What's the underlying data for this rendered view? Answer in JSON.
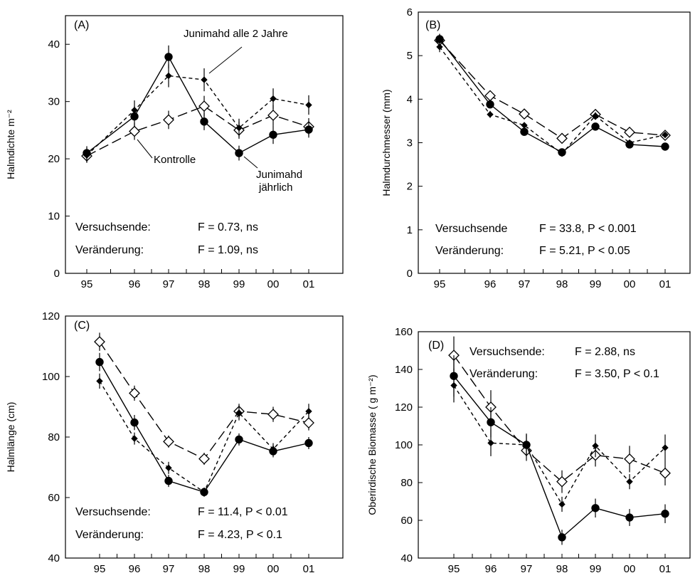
{
  "chart_data": [
    {
      "panel": "(A)",
      "type": "line",
      "categories": [
        "95",
        "96",
        "97",
        "98",
        "99",
        "00",
        "01"
      ],
      "ylabel": "Halmdichte m⁻²",
      "xlabel": "",
      "ylim": [
        0,
        45
      ],
      "yticks": [
        0,
        10,
        20,
        30,
        40
      ],
      "series": [
        {
          "name": "Kontrolle",
          "marker": "open-diamond",
          "dash": "long-dash",
          "values": [
            20.5,
            24.8,
            26.8,
            29.2,
            25.0,
            27.6,
            25.6
          ],
          "err": [
            1.2,
            1.5,
            1.6,
            1.8,
            1.5,
            1.8,
            1.5
          ]
        },
        {
          "name": "Junimahd alle 2 Jahre",
          "marker": "small-diamond",
          "dash": "short-dash",
          "values": [
            20.6,
            28.5,
            34.5,
            33.8,
            25.4,
            30.5,
            29.4
          ],
          "err": [
            1.2,
            1.7,
            2.0,
            2.0,
            1.6,
            1.8,
            1.7
          ]
        },
        {
          "name": "Junimahd\njährlich",
          "marker": "filled-circle",
          "dash": "solid",
          "values": [
            21.0,
            27.4,
            37.8,
            26.5,
            21.0,
            24.2,
            25.1
          ],
          "err": [
            1.2,
            1.8,
            2.0,
            1.5,
            1.3,
            1.6,
            1.4
          ]
        }
      ],
      "annotations": [
        {
          "label": "Versuchsende:",
          "stat": "F  = 0.73, ns"
        },
        {
          "label": "Veränderung:",
          "stat": "F  = 1.09, ns"
        }
      ]
    },
    {
      "panel": "(B)",
      "type": "line",
      "categories": [
        "95",
        "96",
        "97",
        "98",
        "99",
        "00",
        "01"
      ],
      "ylabel": "Halmdurchmesser (mm)",
      "xlabel": "",
      "ylim": [
        0,
        6
      ],
      "yticks": [
        0,
        1,
        2,
        3,
        4,
        5,
        6
      ],
      "series": [
        {
          "name": "",
          "marker": "open-diamond",
          "dash": "long-dash",
          "values": [
            5.35,
            4.08,
            3.66,
            3.1,
            3.65,
            3.24,
            3.17
          ],
          "err": [
            0.15,
            0.1,
            0.08,
            0.07,
            0.08,
            0.07,
            0.06
          ]
        },
        {
          "name": "",
          "marker": "small-diamond",
          "dash": "short-dash",
          "values": [
            5.2,
            3.65,
            3.4,
            2.75,
            3.62,
            3.0,
            3.18
          ],
          "err": [
            0.12,
            0.08,
            0.07,
            0.06,
            0.08,
            0.06,
            0.06
          ]
        },
        {
          "name": "",
          "marker": "filled-circle",
          "dash": "solid",
          "values": [
            5.38,
            3.88,
            3.25,
            2.78,
            3.37,
            2.96,
            2.91
          ],
          "err": [
            0.12,
            0.09,
            0.07,
            0.06,
            0.07,
            0.06,
            0.05
          ]
        }
      ],
      "annotations": [
        {
          "label": "Versuchsende",
          "stat": "F  = 33.8, P  < 0.001"
        },
        {
          "label": "Veränderung:",
          "stat": "F  = 5.21, P  < 0.05"
        }
      ]
    },
    {
      "panel": "(C)",
      "type": "line",
      "categories": [
        "95",
        "96",
        "97",
        "98",
        "99",
        "00",
        "01"
      ],
      "ylabel": "Halmlänge (cm)",
      "xlabel": "",
      "ylim": [
        40,
        120
      ],
      "yticks": [
        40,
        60,
        80,
        100,
        120
      ],
      "series": [
        {
          "name": "",
          "marker": "open-diamond",
          "dash": "long-dash",
          "values": [
            111.5,
            94.5,
            78.5,
            72.8,
            88.5,
            87.5,
            84.7
          ],
          "err": [
            3.0,
            2.5,
            2.0,
            2.0,
            2.5,
            2.5,
            2.5
          ]
        },
        {
          "name": "",
          "marker": "small-diamond",
          "dash": "short-dash",
          "values": [
            98.5,
            79.5,
            69.8,
            61.8,
            88.0,
            76.0,
            88.5
          ],
          "err": [
            2.5,
            2.0,
            2.0,
            1.5,
            2.5,
            2.0,
            2.5
          ]
        },
        {
          "name": "",
          "marker": "filled-circle",
          "dash": "solid",
          "values": [
            104.8,
            84.8,
            65.5,
            61.8,
            79.2,
            75.3,
            78.0
          ],
          "err": [
            3.0,
            2.5,
            2.0,
            1.5,
            2.0,
            2.0,
            2.0
          ]
        }
      ],
      "annotations": [
        {
          "label": "Versuchsende:",
          "stat": "F  = 11.4, P  < 0.01"
        },
        {
          "label": "Veränderung:",
          "stat": "F  = 4.23, P  < 0.1"
        }
      ]
    },
    {
      "panel": "(D)",
      "type": "line",
      "categories": [
        "95",
        "96",
        "97",
        "98",
        "99",
        "00",
        "01"
      ],
      "ylabel": "Oberirdische Biomasse ( g m⁻²)",
      "xlabel": "",
      "ylim": [
        40,
        160
      ],
      "yticks": [
        40,
        60,
        80,
        100,
        120,
        140,
        160
      ],
      "series": [
        {
          "name": "",
          "marker": "open-diamond",
          "dash": "long-dash",
          "values": [
            147.5,
            120.0,
            97.0,
            80.5,
            94.5,
            92.5,
            85.0
          ],
          "err": [
            10.0,
            9.0,
            5.5,
            6.0,
            6.0,
            7.0,
            6.5
          ]
        },
        {
          "name": "",
          "marker": "small-diamond",
          "dash": "short-dash",
          "values": [
            131.5,
            101.0,
            100.0,
            68.5,
            99.5,
            80.5,
            98.5
          ],
          "err": [
            9.0,
            7.0,
            6.0,
            4.0,
            6.0,
            4.0,
            7.0
          ]
        },
        {
          "name": "",
          "marker": "filled-circle",
          "dash": "solid",
          "values": [
            136.5,
            112.0,
            100.0,
            51.0,
            66.5,
            61.5,
            63.5
          ],
          "err": [
            11.0,
            8.0,
            5.5,
            4.0,
            5.0,
            4.5,
            5.0
          ]
        }
      ],
      "annotations": [
        {
          "label": "Versuchsende:",
          "stat": "F  = 2.88, ns"
        },
        {
          "label": "Veränderung:",
          "stat": "F  = 3.50, P  < 0.1"
        }
      ]
    }
  ],
  "callouts": {
    "series_names": [
      "Junimahd alle 2 Jahre",
      "Kontrolle",
      "Junimahd",
      "jährlich"
    ]
  }
}
